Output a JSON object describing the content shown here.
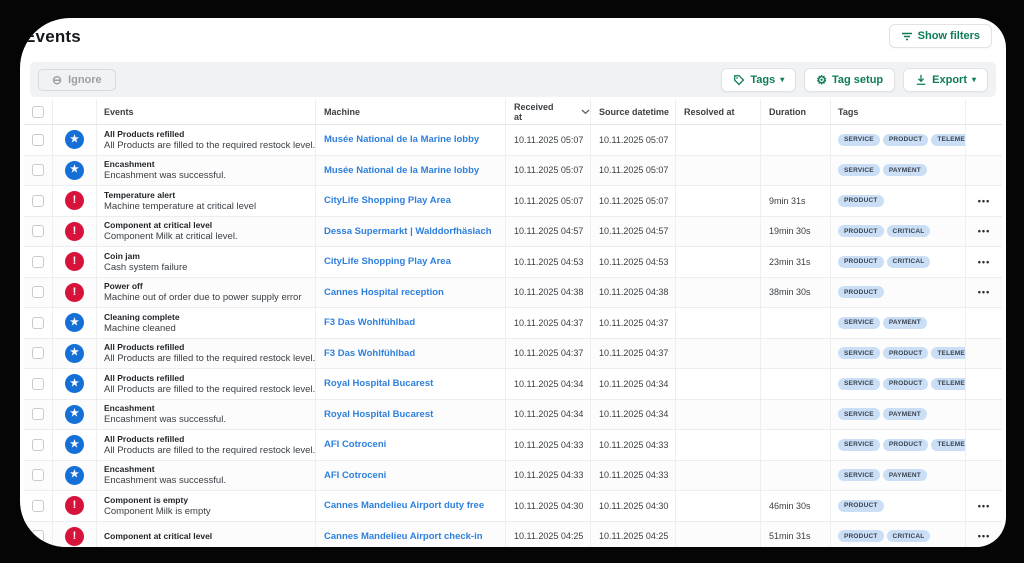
{
  "page": {
    "title": "Events",
    "colors": {
      "accent_green": "#0e7c56",
      "link_blue": "#2e80dc",
      "info_blue": "#1470d6",
      "alert_red": "#d8133b",
      "tag_bg": "#cadef6",
      "tag_text": "#39434e"
    }
  },
  "header": {
    "show_filters_label": "Show filters"
  },
  "toolbar": {
    "ignore_label": "Ignore",
    "tags_label": "Tags",
    "tag_setup_label": "Tag setup",
    "export_label": "Export"
  },
  "table": {
    "columns": [
      {
        "label": "Events"
      },
      {
        "label": "Machine"
      },
      {
        "label": "Received at",
        "sorted": true
      },
      {
        "label": "Source datetime"
      },
      {
        "label": "Resolved at"
      },
      {
        "label": "Duration"
      },
      {
        "label": "Tags"
      }
    ],
    "rows": [
      {
        "icon": "star",
        "title": "All Products refilled",
        "description": "All Products are filled to the required restock level.",
        "machine": "Musée National de la Marine lobby",
        "received_at": "10.11.2025 05:07",
        "source_datetime": "10.11.2025 05:07",
        "resolved_at": "",
        "duration": "",
        "tags": [
          "SERVICE",
          "PRODUCT",
          "TELEMETRY"
        ],
        "has_actions": false
      },
      {
        "icon": "star",
        "title": "Encashment",
        "description": "Encashment was successful.",
        "machine": "Musée National de la Marine lobby",
        "received_at": "10.11.2025 05:07",
        "source_datetime": "10.11.2025 05:07",
        "resolved_at": "",
        "duration": "",
        "tags": [
          "SERVICE",
          "PAYMENT"
        ],
        "has_actions": false
      },
      {
        "icon": "alert",
        "title": "Temperature alert",
        "description": "Machine temperature at critical level",
        "machine": "CityLife Shopping Play Area",
        "received_at": "10.11.2025 05:07",
        "source_datetime": "10.11.2025 05:07",
        "resolved_at": "",
        "duration": "9min 31s",
        "tags": [
          "PRODUCT"
        ],
        "has_actions": true
      },
      {
        "icon": "alert",
        "title": "Component at critical level",
        "description": "Component Milk at critical level.",
        "machine": "Dessa Supermarkt | Walddorfhäslach",
        "received_at": "10.11.2025 04:57",
        "source_datetime": "10.11.2025 04:57",
        "resolved_at": "",
        "duration": "19min 30s",
        "tags": [
          "PRODUCT",
          "CRITICAL"
        ],
        "has_actions": true
      },
      {
        "icon": "alert",
        "title": "Coin jam",
        "description": "Cash system failure",
        "machine": "CityLife Shopping Play Area",
        "received_at": "10.11.2025 04:53",
        "source_datetime": "10.11.2025 04:53",
        "resolved_at": "",
        "duration": "23min 31s",
        "tags": [
          "PRODUCT",
          "CRITICAL"
        ],
        "has_actions": true
      },
      {
        "icon": "alert",
        "title": "Power off",
        "description": "Machine out of order due to power supply error",
        "machine": "Cannes Hospital reception",
        "received_at": "10.11.2025 04:38",
        "source_datetime": "10.11.2025 04:38",
        "resolved_at": "",
        "duration": "38min 30s",
        "tags": [
          "PRODUCT"
        ],
        "has_actions": true
      },
      {
        "icon": "star",
        "title": "Cleaning complete",
        "description": "Machine cleaned",
        "machine": "F3 Das Wohlfühlbad",
        "received_at": "10.11.2025 04:37",
        "source_datetime": "10.11.2025 04:37",
        "resolved_at": "",
        "duration": "",
        "tags": [
          "SERVICE",
          "PAYMENT"
        ],
        "has_actions": false
      },
      {
        "icon": "star",
        "title": "All Products refilled",
        "description": "All Products are filled to the required restock level.",
        "machine": "F3 Das Wohlfühlbad",
        "received_at": "10.11.2025 04:37",
        "source_datetime": "10.11.2025 04:37",
        "resolved_at": "",
        "duration": "",
        "tags": [
          "SERVICE",
          "PRODUCT",
          "TELEMETRY"
        ],
        "has_actions": false
      },
      {
        "icon": "star",
        "title": "All Products refilled",
        "description": "All Products are filled to the required restock level.",
        "machine": "Royal Hospital Bucarest",
        "received_at": "10.11.2025 04:34",
        "source_datetime": "10.11.2025 04:34",
        "resolved_at": "",
        "duration": "",
        "tags": [
          "SERVICE",
          "PRODUCT",
          "TELEMETRY"
        ],
        "has_actions": false
      },
      {
        "icon": "star",
        "title": "Encashment",
        "description": "Encashment was successful.",
        "machine": "Royal Hospital Bucarest",
        "received_at": "10.11.2025 04:34",
        "source_datetime": "10.11.2025 04:34",
        "resolved_at": "",
        "duration": "",
        "tags": [
          "SERVICE",
          "PAYMENT"
        ],
        "has_actions": false
      },
      {
        "icon": "star",
        "title": "All Products refilled",
        "description": "All Products are filled to the required restock level.",
        "machine": "AFI Cotroceni",
        "received_at": "10.11.2025 04:33",
        "source_datetime": "10.11.2025 04:33",
        "resolved_at": "",
        "duration": "",
        "tags": [
          "SERVICE",
          "PRODUCT",
          "TELEMETRY"
        ],
        "has_actions": false
      },
      {
        "icon": "star",
        "title": "Encashment",
        "description": "Encashment was successful.",
        "machine": "AFI Cotroceni",
        "received_at": "10.11.2025 04:33",
        "source_datetime": "10.11.2025 04:33",
        "resolved_at": "",
        "duration": "",
        "tags": [
          "SERVICE",
          "PAYMENT"
        ],
        "has_actions": false
      },
      {
        "icon": "alert",
        "title": "Component is empty",
        "description": "Component Milk is empty",
        "machine": "Cannes Mandelieu Airport duty free",
        "received_at": "10.11.2025 04:30",
        "source_datetime": "10.11.2025 04:30",
        "resolved_at": "",
        "duration": "46min 30s",
        "tags": [
          "PRODUCT"
        ],
        "has_actions": true
      },
      {
        "icon": "alert",
        "title": "Component at critical level",
        "description": "",
        "machine": "Cannes Mandelieu Airport check-in",
        "received_at": "10.11.2025 04:25",
        "source_datetime": "10.11.2025 04:25",
        "resolved_at": "",
        "duration": "51min 31s",
        "tags": [
          "PRODUCT",
          "CRITICAL"
        ],
        "has_actions": true
      }
    ]
  }
}
